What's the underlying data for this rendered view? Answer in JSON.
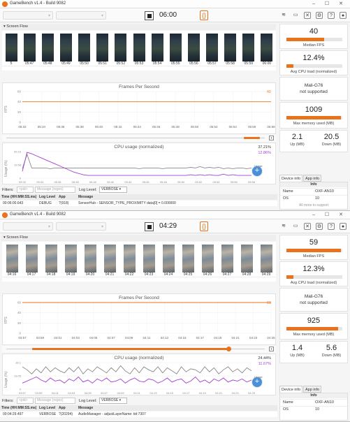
{
  "colors": {
    "accent": "#e8731c",
    "cpu_total": "#888888",
    "cpu_app": "#a040d0",
    "plus_button": "#4a90d9"
  },
  "windows": [
    {
      "title": "GameBench v1.4 - Build 9082",
      "timer": "06:00",
      "marker_icon": "{}",
      "screen_flow_label": "Screen Flow",
      "frame_times": [
        "5",
        "05:47",
        "05:48",
        "05:49",
        "05:50",
        "05:51",
        "05:52",
        "05:53",
        "05:54",
        "05:55",
        "05:56",
        "05:57",
        "05:58",
        "05:59",
        "06:00"
      ],
      "frame_style": "dark",
      "fps_title": "Frames Per Second",
      "fps_value": "40",
      "fps_y_label": "FPS",
      "fps_ticks": [
        "60",
        "40",
        "20",
        "0"
      ],
      "time_ticks": [
        "05:32",
        "05:34",
        "05:36",
        "05:38",
        "05:40",
        "05:42",
        "05:44",
        "05:46",
        "05:48",
        "05:50",
        "05:52",
        "05:54",
        "05:56",
        "05:58"
      ],
      "cpu_title": "CPU usage (normalized)",
      "cpu_y_label": "Usage (%)",
      "cpu_total_value": "37.21%",
      "cpu_app_value": "12.86%",
      "cpu_ticks": [
        "39.16",
        "19.58",
        "0"
      ],
      "usage_label": "Usage",
      "filters_label": "Filters:",
      "pid_placeholder": "<pid>",
      "message_placeholder": "Message (regex)",
      "log_level_label": "Log Level:",
      "log_level_value": "VERBOSE",
      "log_headers": [
        "Time (HH:MM:SS.ms)",
        "Log Level",
        "App",
        "Message"
      ],
      "log_row": [
        "00:06:00.643",
        "DEBUG",
        "?(918)",
        "SensorHub - SENSOR_TYPE_PROXIMITY data[0] = 0.000000"
      ],
      "median_fps": "40",
      "median_fps_label": "Median FPS",
      "median_fps_fill": 0.67,
      "avg_cpu": "12.4%",
      "avg_cpu_label": "Avg CPU load (normalized)",
      "avg_cpu_fill": 0.12,
      "gpu_name": "Mali-G76",
      "gpu_status": "not supported",
      "max_mem": "1009",
      "max_mem_label": "Max memory used (MB)",
      "max_mem_fill": 0.98,
      "up_mb": "2.1",
      "up_label": "Up (MB)",
      "down_mb": "20.5",
      "down_label": "Down (MB)",
      "tab_device": "Device info",
      "tab_app": "App info",
      "info_header": "Info",
      "info_rows": [
        {
          "k": "Name",
          "v": "OXF-AN10"
        },
        {
          "k": "OS",
          "v": "10"
        }
      ],
      "info_more": "All more to support",
      "fps_series": [
        40,
        40,
        40,
        40,
        40,
        40,
        40,
        40,
        40,
        40,
        40,
        40,
        40,
        40,
        40,
        40,
        40,
        40,
        40,
        40,
        40,
        40,
        40,
        40,
        40,
        40,
        40,
        40,
        40,
        40
      ],
      "cpu_total_series": [
        14,
        35,
        15,
        15,
        15,
        15,
        14,
        15,
        15,
        15,
        15,
        15,
        15,
        15,
        15,
        15,
        15,
        15,
        15,
        15,
        15,
        15,
        15,
        15,
        15,
        14,
        15,
        15,
        15,
        15,
        14,
        15,
        15,
        15,
        15,
        15,
        16,
        15,
        17,
        15,
        16,
        15,
        16,
        14,
        15,
        14,
        15,
        15,
        14,
        15
      ],
      "cpu_app_series": [
        10,
        38,
        36,
        33,
        30,
        27,
        24,
        21,
        18,
        15,
        12,
        9,
        7,
        5,
        4,
        4,
        4,
        4,
        4,
        4,
        4,
        4,
        4,
        4,
        4,
        4,
        4,
        4,
        4,
        4,
        4,
        4,
        4,
        4,
        4,
        4,
        5,
        4,
        5,
        4,
        5,
        4,
        4,
        6,
        4,
        5,
        4,
        4,
        4,
        4
      ],
      "slider_fill_start": 0.92,
      "slider_fill_end": 0.98,
      "slider_knob": -1
    },
    {
      "title": "GameBench v1.4 - Build 9082",
      "timer": "04:29",
      "marker_icon": "{}",
      "screen_flow_label": "Screen Flow",
      "frame_times": [
        "04:16",
        "04:17",
        "04:18",
        "04:19",
        "04:20",
        "04:21",
        "04:22",
        "04:23",
        "04:24",
        "04:25",
        "04:26",
        "04:27",
        "04:28",
        "04:29"
      ],
      "frame_style": "photo",
      "fps_title": "Frames Per Second",
      "fps_value": "60",
      "fps_y_label": "FPS",
      "fps_ticks": [
        "60",
        "40",
        "20",
        "0"
      ],
      "time_ticks": [
        "03:57",
        "03:59",
        "04:01",
        "04:03",
        "04:05",
        "04:07",
        "04:09",
        "04:11",
        "04:13",
        "04:15",
        "04:17",
        "04:19",
        "04:21",
        "04:23",
        "04:25"
      ],
      "cpu_title": "CPU usage (normalized)",
      "cpu_y_label": "Usage (%)",
      "cpu_total_value": "24.44%",
      "cpu_app_value": "11.67%",
      "cpu_ticks": [
        "26.1",
        "13.05",
        "0"
      ],
      "usage_label": "Usage",
      "filters_label": "Filters:",
      "pid_placeholder": "<pid>",
      "message_placeholder": "Message (regex)",
      "log_level_label": "Log Level:",
      "log_level_value": "VERBOSE",
      "log_headers": [
        "Time (HH:MM:SS.ms)",
        "Log Level",
        "App",
        "Message"
      ],
      "log_row": [
        "00:04:29.497",
        "VERBOSE",
        "?(20294)",
        "AudioManager - adjustLayerName: tid:7307"
      ],
      "median_fps": "59",
      "median_fps_label": "Median FPS",
      "median_fps_fill": 0.98,
      "avg_cpu": "12.3%",
      "avg_cpu_label": "Avg CPU load (normalized)",
      "avg_cpu_fill": 0.12,
      "gpu_name": "Mali-G76",
      "gpu_status": "not supported",
      "max_mem": "925",
      "max_mem_label": "Max memory used (MB)",
      "max_mem_fill": 0.92,
      "up_mb": "1.4",
      "up_label": "Up (MB)",
      "down_mb": "5.6",
      "down_label": "Down (MB)",
      "tab_device": "Device info",
      "tab_app": "App info",
      "info_header": "Info",
      "info_rows": [
        {
          "k": "Name",
          "v": "OXF-AN10"
        },
        {
          "k": "OS",
          "v": "10"
        }
      ],
      "info_more": "",
      "fps_series": [
        60,
        60,
        60,
        60,
        60,
        60,
        60,
        60,
        60,
        60,
        60,
        60,
        60,
        60,
        60,
        60,
        60,
        60,
        60,
        60,
        60,
        60,
        60,
        60,
        60,
        60,
        60,
        60,
        60,
        60
      ],
      "cpu_total_series": [
        22,
        19,
        15,
        20,
        16,
        22,
        17,
        21,
        18,
        16,
        21,
        17,
        22,
        15,
        20,
        17,
        22,
        19,
        16,
        21,
        17,
        23,
        18,
        15,
        21,
        16,
        22,
        19,
        17,
        22,
        16,
        21,
        18,
        15,
        22,
        17,
        20,
        19,
        16,
        22,
        17,
        21,
        15,
        19,
        22,
        17,
        20,
        16,
        21,
        18
      ],
      "cpu_app_series": [
        6,
        8,
        10,
        12,
        9,
        7,
        11,
        8,
        9,
        6,
        10,
        8,
        12,
        7,
        9,
        6,
        10,
        8,
        11,
        7,
        8,
        10,
        6,
        9,
        11,
        8,
        7,
        10,
        9,
        6,
        8,
        11,
        7,
        9,
        10,
        6,
        8,
        12,
        7,
        9,
        6,
        10,
        8,
        11,
        7,
        9,
        8,
        10,
        7,
        9
      ],
      "slider_fill_start": 0.1,
      "slider_fill_end": 0.86,
      "slider_knob": 0.86
    }
  ]
}
